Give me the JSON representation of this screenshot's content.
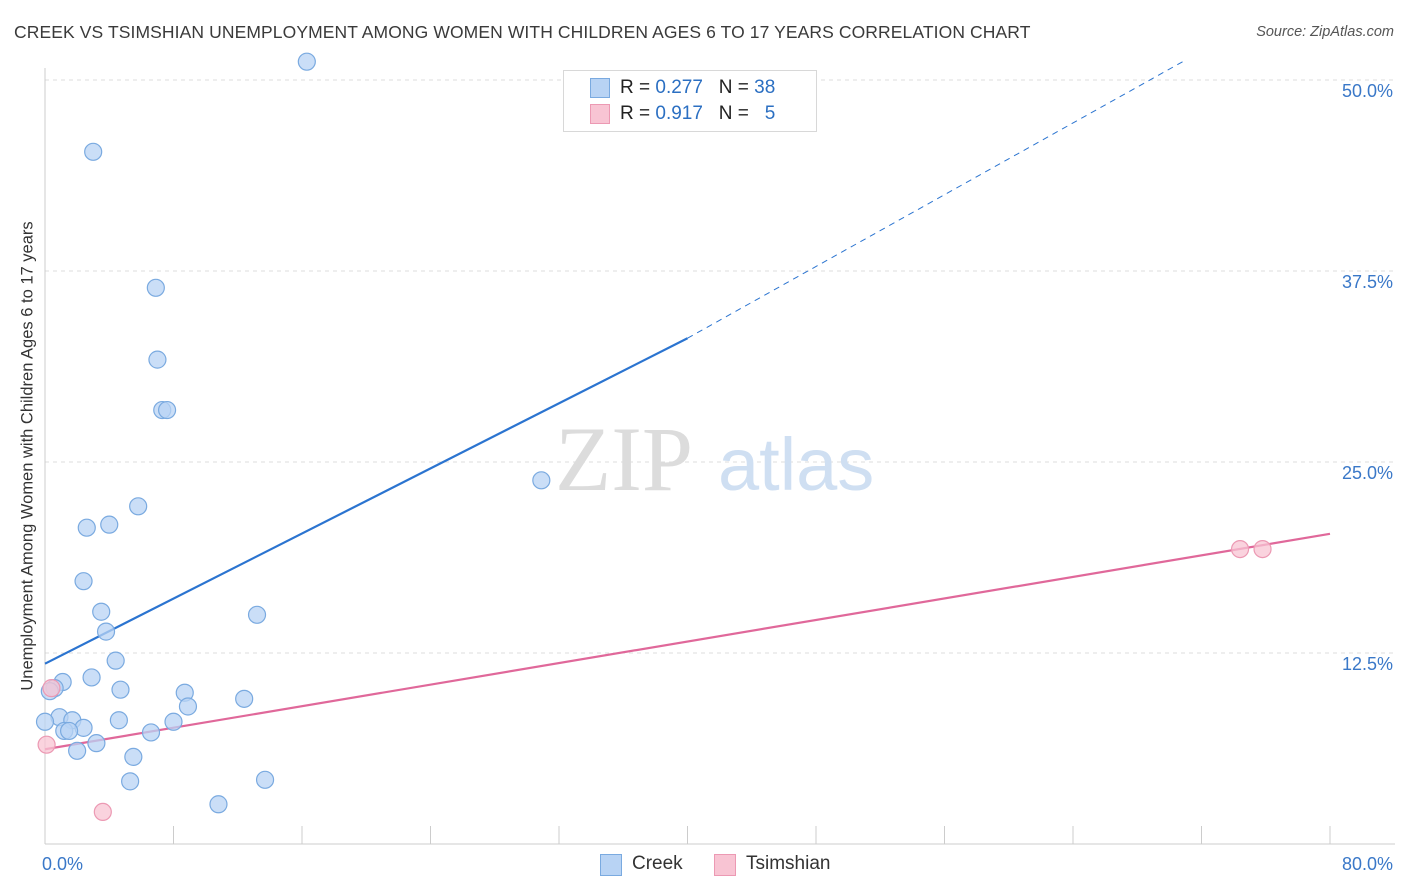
{
  "title": "CREEK VS TSIMSHIAN UNEMPLOYMENT AMONG WOMEN WITH CHILDREN AGES 6 TO 17 YEARS CORRELATION CHART",
  "source": "Source: ZipAtlas.com",
  "watermark": {
    "zip": "ZIP",
    "atlas": "atlas"
  },
  "legend": {
    "creek": {
      "r_label": "R =",
      "r_value": "0.277",
      "n_label": "N =",
      "n_value": "38"
    },
    "tsimshian": {
      "r_label": "R =",
      "r_value": "0.917",
      "n_label": "N =",
      "n_value": "5"
    }
  },
  "bottom_legend": {
    "creek": "Creek",
    "tsimshian": "Tsimshian"
  },
  "colors": {
    "creek_fill": "#b8d3f4",
    "creek_stroke": "#7aaae0",
    "creek_line": "#2b74d0",
    "tsimshian_fill": "#f8c4d3",
    "tsimshian_stroke": "#ec99b3",
    "tsimshian_line": "#e0689a",
    "tick_label": "#3a78c8",
    "grid": "#dddddd"
  },
  "chart_data": {
    "type": "scatter",
    "title": "CREEK VS TSIMSHIAN UNEMPLOYMENT AMONG WOMEN WITH CHILDREN AGES 6 TO 17 YEARS CORRELATION CHART",
    "xlabel": "",
    "ylabel": "Unemployment Among Women with Children Ages 6 to 17 years",
    "xlim": [
      0,
      80
    ],
    "ylim": [
      0,
      50
    ],
    "x_tick_labels": [
      "0.0%",
      "80.0%"
    ],
    "y_ticks": [
      12.5,
      25.0,
      37.5,
      50.0
    ],
    "y_tick_labels": [
      "12.5%",
      "25.0%",
      "37.5%",
      "50.0%"
    ],
    "grid": true,
    "series": [
      {
        "name": "Creek",
        "points": [
          [
            16.3,
            51.2
          ],
          [
            3.0,
            45.3
          ],
          [
            6.9,
            36.4
          ],
          [
            7.0,
            31.7
          ],
          [
            7.3,
            28.4
          ],
          [
            7.6,
            28.4
          ],
          [
            30.9,
            23.8
          ],
          [
            5.8,
            22.1
          ],
          [
            4.0,
            20.9
          ],
          [
            2.6,
            20.7
          ],
          [
            2.4,
            17.2
          ],
          [
            3.5,
            15.2
          ],
          [
            13.2,
            15.0
          ],
          [
            3.8,
            13.9
          ],
          [
            4.4,
            12.0
          ],
          [
            2.9,
            10.9
          ],
          [
            1.1,
            10.6
          ],
          [
            0.6,
            10.2
          ],
          [
            0.3,
            10.0
          ],
          [
            4.7,
            10.1
          ],
          [
            8.7,
            9.9
          ],
          [
            8.9,
            9.0
          ],
          [
            12.4,
            9.5
          ],
          [
            0.9,
            8.3
          ],
          [
            1.7,
            8.1
          ],
          [
            2.4,
            7.6
          ],
          [
            1.2,
            7.4
          ],
          [
            1.5,
            7.4
          ],
          [
            4.6,
            8.1
          ],
          [
            8.0,
            8.0
          ],
          [
            6.6,
            7.3
          ],
          [
            3.2,
            6.6
          ],
          [
            0.0,
            8.0
          ],
          [
            2.0,
            6.1
          ],
          [
            5.5,
            5.7
          ],
          [
            5.3,
            4.1
          ],
          [
            13.7,
            4.2
          ],
          [
            10.8,
            2.6
          ]
        ],
        "trend": {
          "x": [
            0,
            40
          ],
          "y": [
            11.8,
            33.1
          ]
        },
        "trend_extension": {
          "x": [
            40,
            71
          ],
          "y": [
            33.1,
            51.3
          ]
        }
      },
      {
        "name": "Tsimshian",
        "points": [
          [
            0.1,
            6.5
          ],
          [
            0.4,
            10.2
          ],
          [
            3.6,
            2.1
          ],
          [
            74.4,
            19.3
          ],
          [
            75.8,
            19.3
          ]
        ],
        "trend": {
          "x": [
            0,
            80
          ],
          "y": [
            6.2,
            20.3
          ]
        }
      }
    ]
  }
}
